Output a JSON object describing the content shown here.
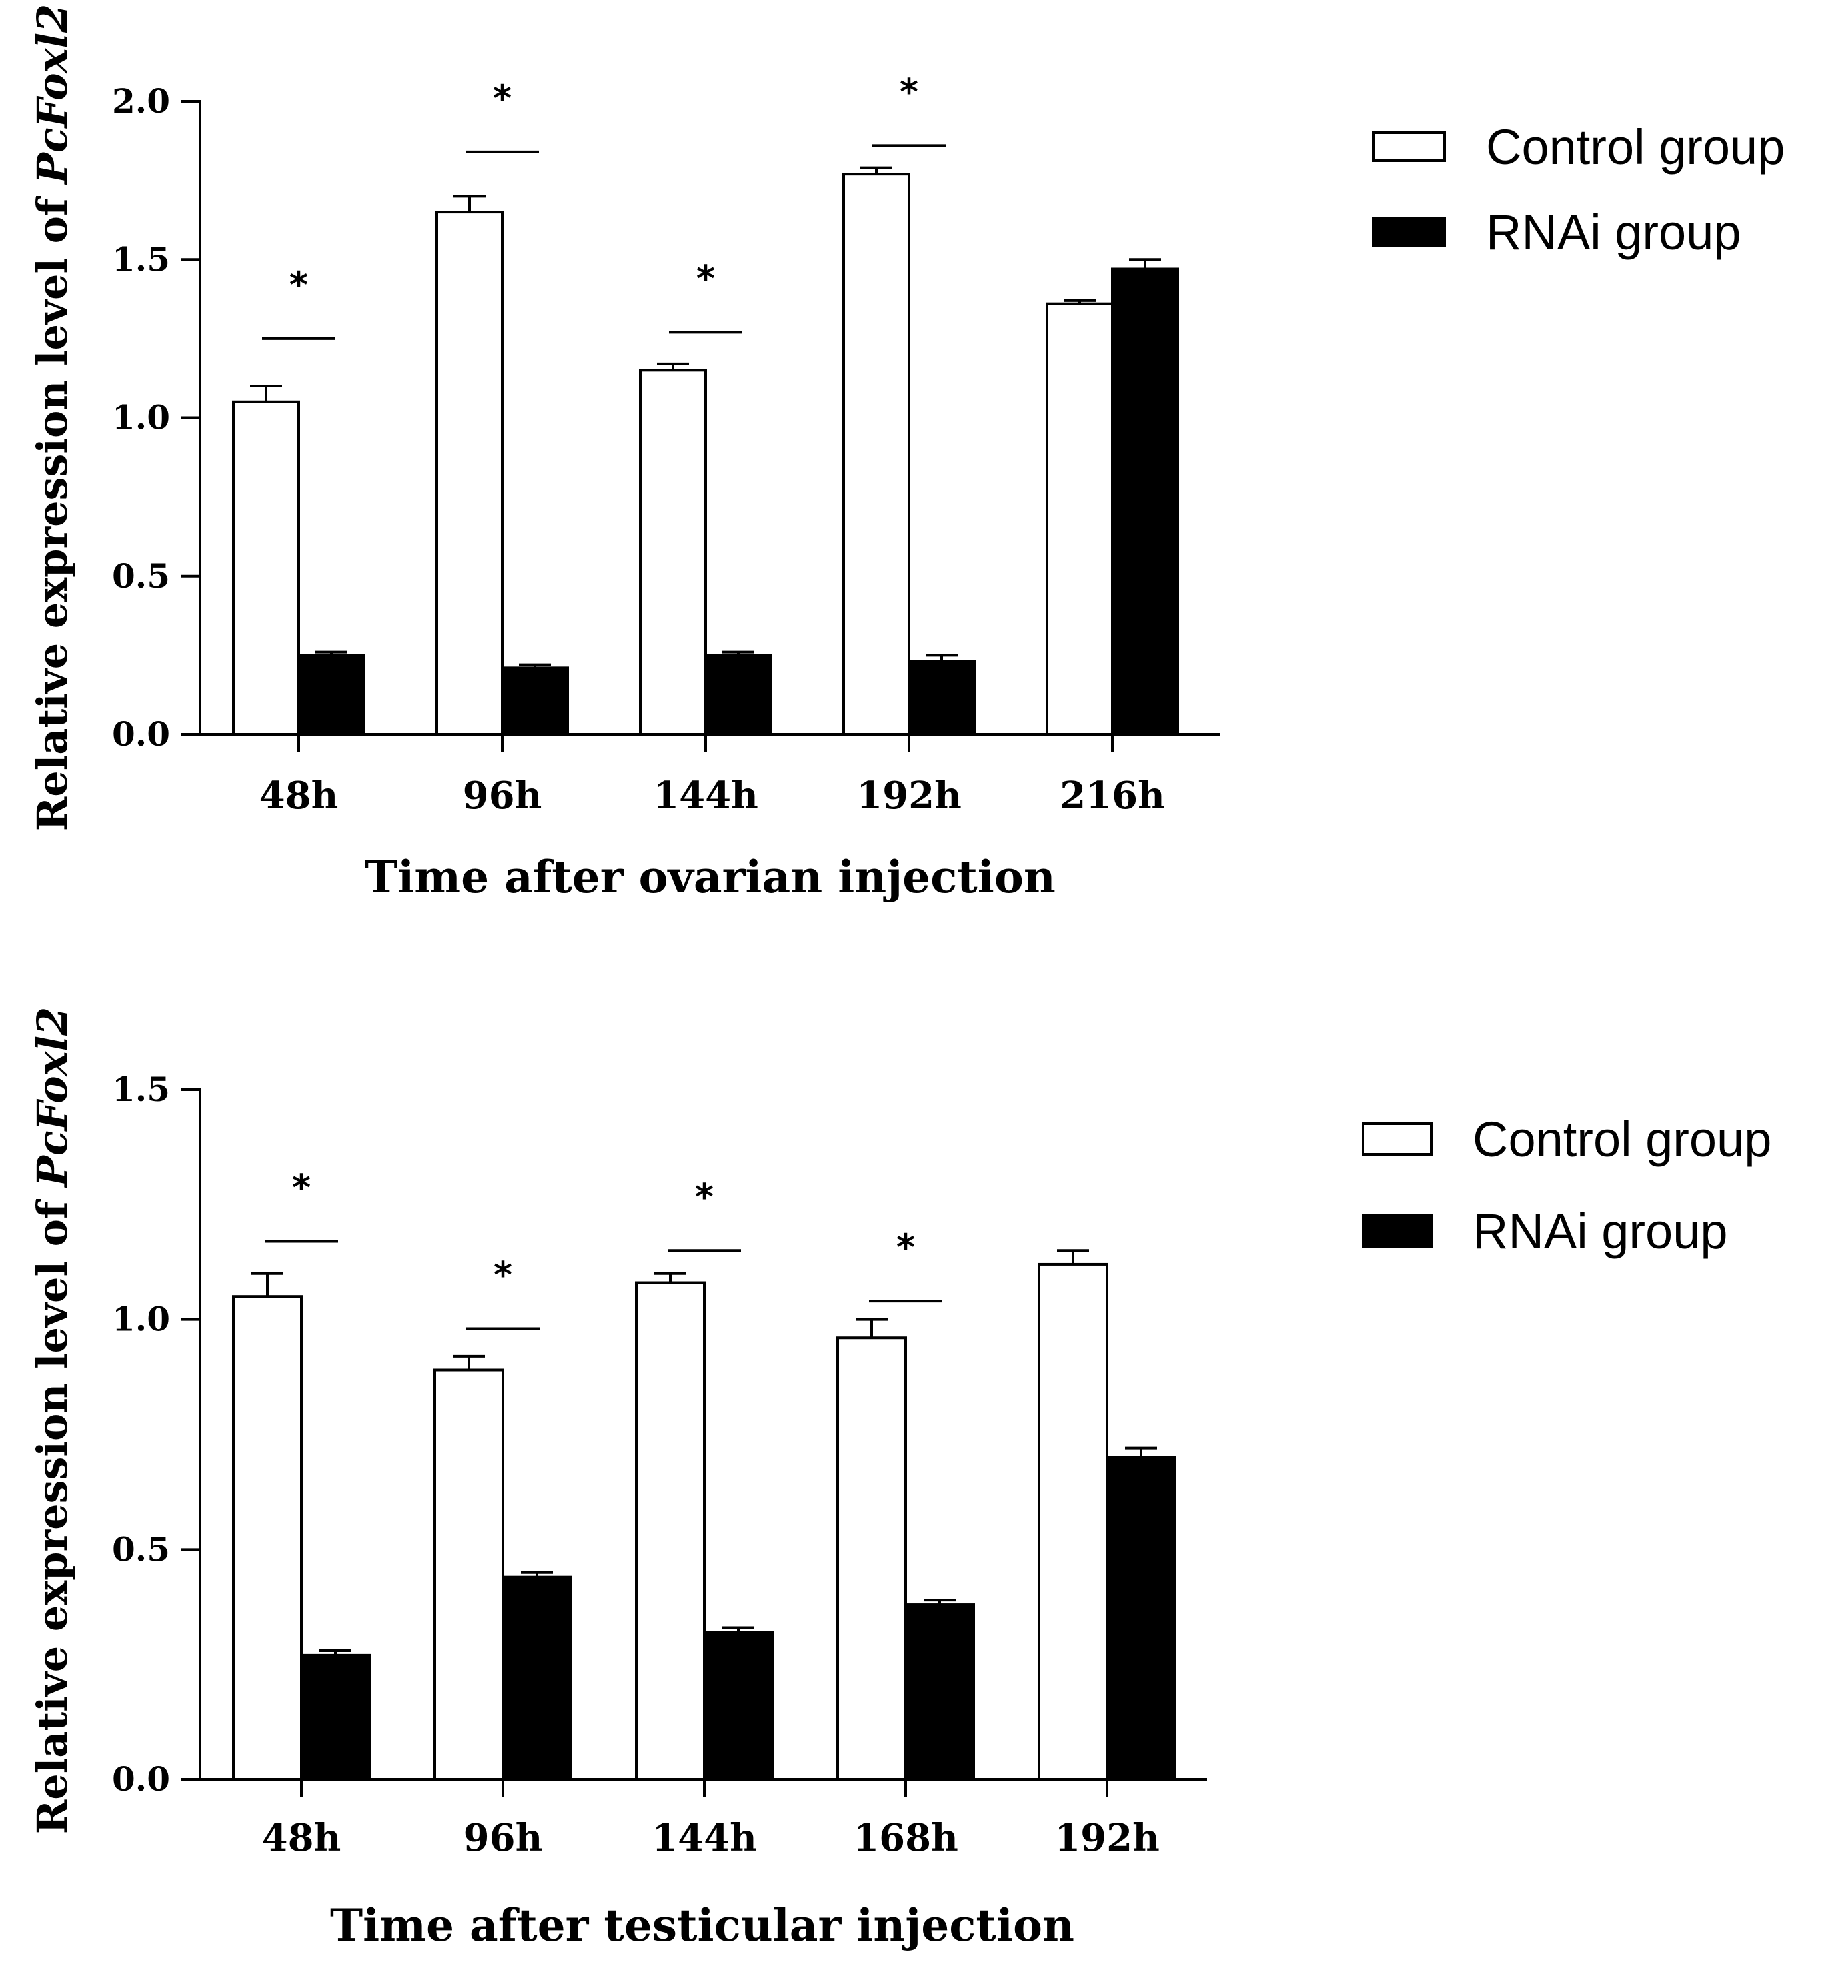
{
  "chart_data": [
    {
      "type": "bar",
      "id": "ovarian",
      "xlabel": "Time after ovarian injection",
      "ylabel_prefix": "Relative expression level of ",
      "ylabel_gene": "PcFoxl2",
      "ylim": [
        0,
        2.0
      ],
      "yticks": [
        0.0,
        0.5,
        1.0,
        1.5,
        2.0
      ],
      "ytick_labels": [
        "0.0",
        "0.5",
        "1.0",
        "1.5",
        "2.0"
      ],
      "categories": [
        "48h",
        "96h",
        "144h",
        "192h",
        "216h"
      ],
      "series": [
        {
          "name": "Control group",
          "values": [
            1.05,
            1.65,
            1.15,
            1.77,
            1.36
          ],
          "errors": [
            0.05,
            0.05,
            0.02,
            0.02,
            0.01
          ]
        },
        {
          "name": "RNAi group",
          "values": [
            0.25,
            0.21,
            0.25,
            0.23,
            1.47
          ],
          "errors": [
            0.01,
            0.01,
            0.01,
            0.02,
            0.03
          ]
        }
      ],
      "significance": [
        {
          "category": "48h",
          "label": "*",
          "level": 1.25
        },
        {
          "category": "96h",
          "label": "*",
          "level": 1.84
        },
        {
          "category": "144h",
          "label": "*",
          "level": 1.27
        },
        {
          "category": "192h",
          "label": "*",
          "level": 1.86
        }
      ],
      "legend": {
        "position": "top-right",
        "entries": [
          "Control group",
          "RNAi group"
        ]
      }
    },
    {
      "type": "bar",
      "id": "testicular",
      "xlabel": "Time after testicular injection",
      "ylabel_prefix": "Relative expression level of ",
      "ylabel_gene": "PcFoxl2",
      "ylim": [
        0,
        1.5
      ],
      "yticks": [
        0.0,
        0.5,
        1.0,
        1.5
      ],
      "ytick_labels": [
        "0.0",
        "0.5",
        "1.0",
        "1.5"
      ],
      "categories": [
        "48h",
        "96h",
        "144h",
        "168h",
        "192h"
      ],
      "series": [
        {
          "name": "Control group",
          "values": [
            1.05,
            0.89,
            1.08,
            0.96,
            1.12
          ],
          "errors": [
            0.05,
            0.03,
            0.02,
            0.04,
            0.03
          ]
        },
        {
          "name": "RNAi group",
          "values": [
            0.27,
            0.44,
            0.32,
            0.38,
            0.7
          ],
          "errors": [
            0.01,
            0.01,
            0.01,
            0.01,
            0.02
          ]
        }
      ],
      "significance": [
        {
          "category": "48h",
          "label": "*",
          "level": 1.17
        },
        {
          "category": "96h",
          "label": "*",
          "level": 0.98
        },
        {
          "category": "144h",
          "label": "*",
          "level": 1.15
        },
        {
          "category": "168h",
          "label": "*",
          "level": 1.04
        }
      ],
      "legend": {
        "position": "top-right",
        "entries": [
          "Control group",
          "RNAi group"
        ]
      }
    }
  ]
}
